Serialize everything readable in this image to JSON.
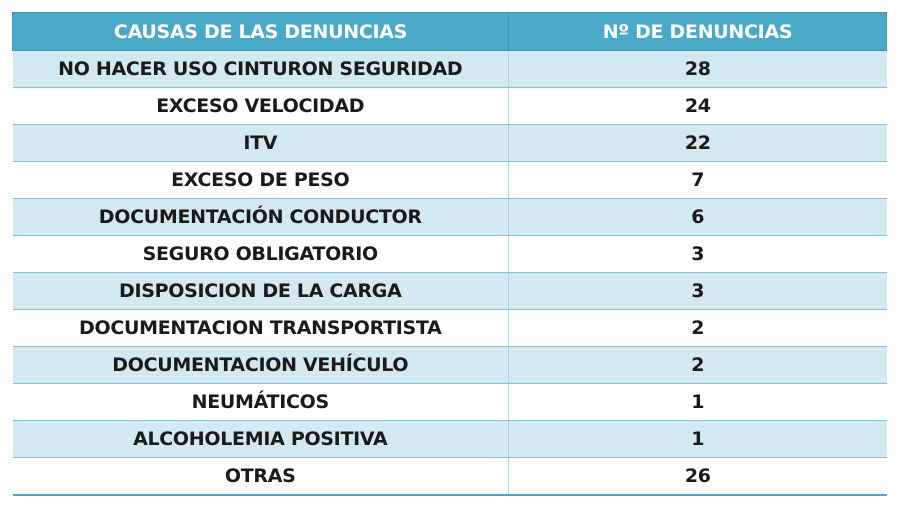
{
  "table": {
    "headers": [
      "CAUSAS DE LAS DENUNCIAS",
      "Nº DE DENUNCIAS"
    ],
    "rows": [
      {
        "cause": "NO HACER USO CINTURON SEGURIDAD",
        "count": "28"
      },
      {
        "cause": "EXCESO VELOCIDAD",
        "count": "24"
      },
      {
        "cause": "ITV",
        "count": "22"
      },
      {
        "cause": "EXCESO DE PESO",
        "count": "7"
      },
      {
        "cause": "DOCUMENTACIÓN CONDUCTOR",
        "count": "6"
      },
      {
        "cause": "SEGURO OBLIGATORIO",
        "count": "3"
      },
      {
        "cause": "DISPOSICION DE LA CARGA",
        "count": "3"
      },
      {
        "cause": "DOCUMENTACION TRANSPORTISTA",
        "count": "2"
      },
      {
        "cause": "DOCUMENTACION VEHÍCULO",
        "count": "2"
      },
      {
        "cause": "NEUMÁTICOS",
        "count": "1"
      },
      {
        "cause": "ALCOHOLEMIA POSITIVA",
        "count": "1"
      },
      {
        "cause": "OTRAS",
        "count": "26"
      }
    ]
  },
  "colors": {
    "header_bg": "#49a9c6",
    "header_text": "#ffffff",
    "row_alt_bg": "#d3e8f0",
    "row_bg": "#ffffff"
  }
}
